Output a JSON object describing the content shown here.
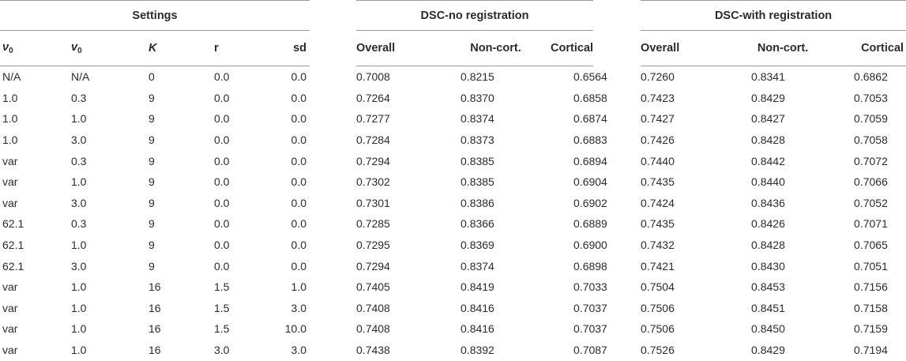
{
  "groups": {
    "settings": "Settings",
    "dsc_no_reg": "DSC-no registration",
    "dsc_with_reg": "DSC-with registration"
  },
  "columns": {
    "nu0_a": "ν",
    "nu0_a_sub": "0",
    "nu0_b": "v",
    "nu0_b_sub": "0",
    "K": "K",
    "r": "r",
    "sd": "sd",
    "overall_1": "Overall",
    "noncort_1": "Non-cort.",
    "cortical_1": "Cortical",
    "overall_2": "Overall",
    "noncort_2": "Non-cort.",
    "cortical_2": "Cortical"
  },
  "rows": [
    [
      "N/A",
      "N/A",
      "0",
      "0.0",
      "0.0",
      "0.7008",
      "0.8215",
      "0.6564",
      "0.7260",
      "0.8341",
      "0.6862"
    ],
    [
      "1.0",
      "0.3",
      "9",
      "0.0",
      "0.0",
      "0.7264",
      "0.8370",
      "0.6858",
      "0.7423",
      "0.8429",
      "0.7053"
    ],
    [
      "1.0",
      "1.0",
      "9",
      "0.0",
      "0.0",
      "0.7277",
      "0.8374",
      "0.6874",
      "0.7427",
      "0.8427",
      "0.7059"
    ],
    [
      "1.0",
      "3.0",
      "9",
      "0.0",
      "0.0",
      "0.7284",
      "0.8373",
      "0.6883",
      "0.7426",
      "0.8428",
      "0.7058"
    ],
    [
      "var",
      "0.3",
      "9",
      "0.0",
      "0.0",
      "0.7294",
      "0.8385",
      "0.6894",
      "0.7440",
      "0.8442",
      "0.7072"
    ],
    [
      "var",
      "1.0",
      "9",
      "0.0",
      "0.0",
      "0.7302",
      "0.8385",
      "0.6904",
      "0.7435",
      "0.8440",
      "0.7066"
    ],
    [
      "var",
      "3.0",
      "9",
      "0.0",
      "0.0",
      "0.7301",
      "0.8386",
      "0.6902",
      "0.7424",
      "0.8436",
      "0.7052"
    ],
    [
      "62.1",
      "0.3",
      "9",
      "0.0",
      "0.0",
      "0.7285",
      "0.8366",
      "0.6889",
      "0.7435",
      "0.8426",
      "0.7071"
    ],
    [
      "62.1",
      "1.0",
      "9",
      "0.0",
      "0.0",
      "0.7295",
      "0.8369",
      "0.6900",
      "0.7432",
      "0.8428",
      "0.7065"
    ],
    [
      "62.1",
      "3.0",
      "9",
      "0.0",
      "0.0",
      "0.7294",
      "0.8374",
      "0.6898",
      "0.7421",
      "0.8430",
      "0.7051"
    ],
    [
      "var",
      "1.0",
      "16",
      "1.5",
      "1.0",
      "0.7405",
      "0.8419",
      "0.7033",
      "0.7504",
      "0.8453",
      "0.7156"
    ],
    [
      "var",
      "1.0",
      "16",
      "1.5",
      "3.0",
      "0.7408",
      "0.8416",
      "0.7037",
      "0.7506",
      "0.8451",
      "0.7158"
    ],
    [
      "var",
      "1.0",
      "16",
      "1.5",
      "10.0",
      "0.7408",
      "0.8416",
      "0.7037",
      "0.7506",
      "0.8450",
      "0.7159"
    ],
    [
      "var",
      "1.0",
      "16",
      "3.0",
      "3.0",
      "0.7438",
      "0.8392",
      "0.7087",
      "0.7526",
      "0.8429",
      "0.7194"
    ]
  ]
}
